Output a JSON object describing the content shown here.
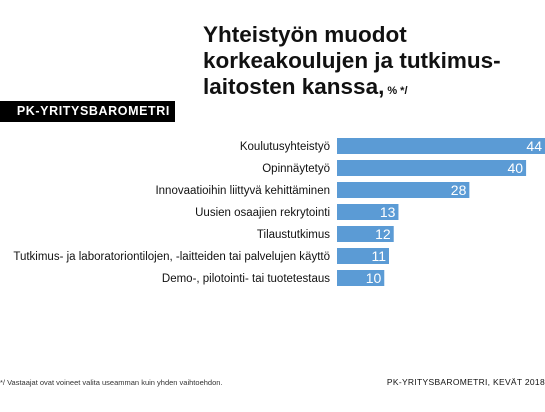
{
  "title_lines": [
    "Yhteistyön muodot",
    "korkeakoulujen ja tutkimus-",
    "laitosten kanssa,"
  ],
  "unit": "% */",
  "badge": "PK-YRITYSBAROMETRI",
  "footnote": "*/ Vastaajat ovat voineet valita useamman kuin yhden vaihtoehdon.",
  "source": "PK-YRITYSBAROMETRI, KEVÄT 2018",
  "colors": {
    "bar": "#5b9bd5",
    "bar_label": "#ffffff",
    "badge_bg": "#000000"
  },
  "chart_data": {
    "type": "bar",
    "orientation": "horizontal",
    "categories": [
      "Koulutusyhteistyö",
      "Opinnäytetyö",
      "Innovaatioihin liittyvä kehittäminen",
      "Uusien osaajien rekrytointi",
      "Tilaustutkimus",
      "Tutkimus- ja laboratoriontilojen, -laitteiden tai  palvelujen käyttö",
      "Demo-, pilotointi- tai tuotetestaus"
    ],
    "values": [
      44,
      40,
      28,
      13,
      12,
      11,
      10
    ],
    "data_labels": [
      "44",
      "40",
      "28",
      "13",
      "12",
      "11",
      "10"
    ],
    "xlim": [
      0,
      44
    ],
    "grid": false,
    "legend": "none"
  }
}
